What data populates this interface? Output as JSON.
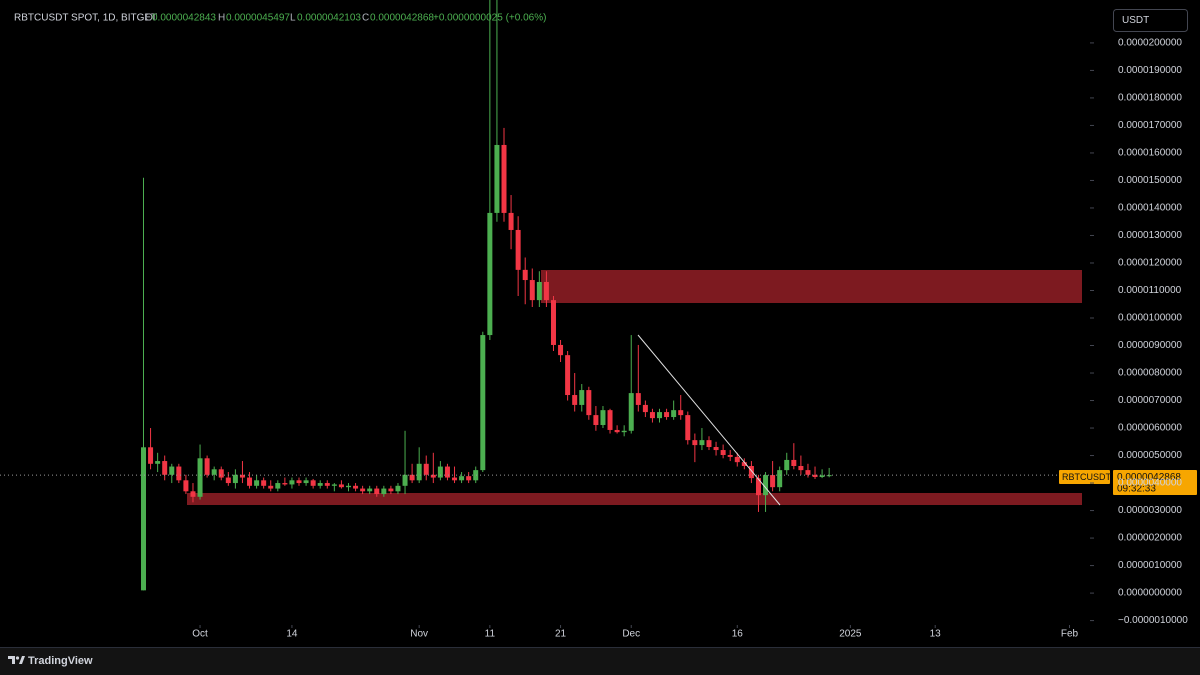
{
  "chart_data": {
    "type": "candlestick",
    "title": "RBTCUSDT SPOT, 1D, BITGET",
    "ohlc_letters": [
      "O",
      "H",
      "L",
      "C"
    ],
    "change": "+0.0000000025 (+0.06%)",
    "currency": "USDT",
    "symbol_tag": "RBTCUSDT",
    "countdown": "09:32:33",
    "brand": "TradingView",
    "up_color": "#4caf50",
    "down_color": "#f23645",
    "grid": false,
    "open": [
      1e-07,
      5.3e-06,
      4.7e-06,
      4.8e-06,
      4.3e-06,
      4.6e-06,
      4.1e-06,
      3.7e-06,
      3.5e-06,
      4.9e-06,
      4.3e-06,
      4.5e-06,
      4.2e-06,
      4e-06,
      4.3e-06,
      4.2e-06,
      3.9e-06,
      4.1e-06,
      3.9e-06,
      3.8e-06,
      4e-06,
      3.95e-06,
      4.1e-06,
      4e-06,
      4.1e-06,
      3.9e-06,
      4e-06,
      3.9e-06,
      3.95e-06,
      3.85e-06,
      3.9e-06,
      3.8e-06,
      3.7e-06,
      3.8e-06,
      3.6e-06,
      3.8e-06,
      3.7e-06,
      3.9e-06,
      4.3e-06,
      4.1e-06,
      4.7e-06,
      4.3e-06,
      4.2e-06,
      4.6e-06,
      4.2e-06,
      4.1e-06,
      4.25e-06,
      4.1e-06,
      4.47e-06,
      9.38e-06,
      1.382e-05,
      1.629e-05,
      1.382e-05,
      1.32e-05,
      1.175e-05,
      1.138e-05,
      1.065e-05,
      1.131e-05,
      1.065e-05,
      9.02e-06,
      8.65e-06,
      7.2e-06,
      6.84e-06,
      7.38e-06,
      6.47e-06,
      6.11e-06,
      6.65e-06,
      5.93e-06,
      5.85e-06,
      5.9e-06,
      7.27e-06,
      6.84e-06,
      6.58e-06,
      6.36e-06,
      6.58e-06,
      6.4e-06,
      6.65e-06,
      6.47e-06,
      5.56e-06,
      5.38e-06,
      5.56e-06,
      5.31e-06,
      5.2e-06,
      5.02e-06,
      4.95e-06,
      4.76e-06,
      4.62e-06,
      4.18e-06,
      3.56e-06,
      4.29e-06,
      3.85e-06,
      4.47e-06,
      4.84e-06,
      4.62e-06,
      4.47e-06,
      4.3e-06,
      4.22e-06,
      4.2843e-06
    ],
    "high": [
      1.51e-05,
      6e-06,
      5.1e-06,
      5e-06,
      4.7e-06,
      4.7e-06,
      4.3e-06,
      4e-06,
      5.4e-06,
      5e-06,
      4.6e-06,
      4.6e-06,
      4.4e-06,
      4.5e-06,
      4.8e-06,
      4.4e-06,
      4.3e-06,
      4.2e-06,
      4.1e-06,
      4.1e-06,
      4.2e-06,
      4.2e-06,
      4.2e-06,
      4.2e-06,
      4.15e-06,
      4.1e-06,
      4.1e-06,
      4e-06,
      4.1e-06,
      4e-06,
      4e-06,
      3.9e-06,
      3.9e-06,
      3.9e-06,
      3.9e-06,
      3.9e-06,
      4e-06,
      5.9e-06,
      4.7e-06,
      5.3e-06,
      5e-06,
      5.1e-06,
      4.8e-06,
      4.7e-06,
      4.6e-06,
      4.4e-06,
      4.4e-06,
      4.6e-06,
      9.5e-06,
      2.16e-05,
      2.16e-05,
      1.691e-05,
      1.447e-05,
      1.37e-05,
      1.22e-05,
      1.18e-05,
      1.17e-05,
      1.17e-05,
      1.08e-05,
      9.2e-06,
      8.8e-06,
      8e-06,
      7.6e-06,
      7.5e-06,
      6.8e-06,
      6.8e-06,
      6.7e-06,
      6.1e-06,
      6.1e-06,
      9.38e-06,
      9.02e-06,
      7e-06,
      6.7e-06,
      6.7e-06,
      6.7e-06,
      7e-06,
      7.2e-06,
      6.6e-06,
      5.8e-06,
      6e-06,
      5.7e-06,
      5.5e-06,
      5.4e-06,
      5.2e-06,
      5.1e-06,
      4.9e-06,
      4.8e-06,
      4.3e-06,
      4.4e-06,
      4.8e-06,
      4.6e-06,
      5.1e-06,
      5.45e-06,
      5e-06,
      4.7e-06,
      4.6e-06,
      4.5e-06,
      4.5497e-06
    ],
    "low": [
      1e-07,
      4.5e-06,
      4.4e-06,
      4.1e-06,
      4e-06,
      4e-06,
      3.6e-06,
      3.3e-06,
      3.4e-06,
      4.2e-06,
      4.1e-06,
      4.1e-06,
      3.9e-06,
      3.8e-06,
      4e-06,
      3.8e-06,
      3.8e-06,
      3.8e-06,
      3.7e-06,
      3.7e-06,
      3.9e-06,
      3.8e-06,
      3.9e-06,
      3.9e-06,
      3.8e-06,
      3.8e-06,
      3.8e-06,
      3.7e-06,
      3.8e-06,
      3.7e-06,
      3.7e-06,
      3.6e-06,
      3.6e-06,
      3.5e-06,
      3.5e-06,
      3.6e-06,
      3.6e-06,
      3.6e-06,
      4e-06,
      4e-06,
      4.1e-06,
      4e-06,
      4.1e-06,
      4.1e-06,
      4e-06,
      4e-06,
      4e-06,
      4e-06,
      4.4e-06,
      9.2e-06,
      1.35e-05,
      1.35e-05,
      1.25e-05,
      1.08e-05,
      1.05e-05,
      1.04e-05,
      1.04e-05,
      1.04e-05,
      8.8e-06,
      8.4e-06,
      7e-06,
      6.6e-06,
      6.6e-06,
      6.3e-06,
      5.9e-06,
      6e-06,
      5.8e-06,
      5.8e-06,
      5.7e-06,
      5.8e-06,
      6.6e-06,
      6.4e-06,
      6.2e-06,
      6.2e-06,
      6.3e-06,
      6.3e-06,
      6.3e-06,
      5.4e-06,
      4.76e-06,
      5.2e-06,
      5.2e-06,
      5e-06,
      4.9e-06,
      4.8e-06,
      4.6e-06,
      4.5e-06,
      4e-06,
      2.95e-06,
      2.95e-06,
      3.7e-06,
      3.7e-06,
      4.3e-06,
      4.5e-06,
      4.3e-06,
      4.2e-06,
      4.15e-06,
      4.18e-06,
      4.2103e-06
    ],
    "close": [
      5.3e-06,
      4.7e-06,
      4.8e-06,
      4.3e-06,
      4.6e-06,
      4.1e-06,
      3.7e-06,
      3.5e-06,
      4.9e-06,
      4.3e-06,
      4.5e-06,
      4.2e-06,
      4e-06,
      4.3e-06,
      4.2e-06,
      3.9e-06,
      4.1e-06,
      3.9e-06,
      3.8e-06,
      4e-06,
      3.95e-06,
      4.1e-06,
      4e-06,
      4.1e-06,
      3.9e-06,
      4e-06,
      3.9e-06,
      3.95e-06,
      3.85e-06,
      3.9e-06,
      3.8e-06,
      3.7e-06,
      3.8e-06,
      3.6e-06,
      3.8e-06,
      3.7e-06,
      3.9e-06,
      4.3e-06,
      4.1e-06,
      4.7e-06,
      4.3e-06,
      4.2e-06,
      4.6e-06,
      4.2e-06,
      4.1e-06,
      4.25e-06,
      4.1e-06,
      4.47e-06,
      9.38e-06,
      1.382e-05,
      1.629e-05,
      1.382e-05,
      1.32e-05,
      1.175e-05,
      1.138e-05,
      1.065e-05,
      1.131e-05,
      1.065e-05,
      9.02e-06,
      8.65e-06,
      7.2e-06,
      6.84e-06,
      7.38e-06,
      6.47e-06,
      6.11e-06,
      6.65e-06,
      5.93e-06,
      5.85e-06,
      5.9e-06,
      7.27e-06,
      6.84e-06,
      6.58e-06,
      6.36e-06,
      6.58e-06,
      6.4e-06,
      6.65e-06,
      6.47e-06,
      5.56e-06,
      5.38e-06,
      5.56e-06,
      5.31e-06,
      5.2e-06,
      5.02e-06,
      4.95e-06,
      4.76e-06,
      4.62e-06,
      4.18e-06,
      3.56e-06,
      4.29e-06,
      3.85e-06,
      4.47e-06,
      4.84e-06,
      4.62e-06,
      4.47e-06,
      4.3e-06,
      4.22e-06,
      4.28e-06,
      4.2868e-06
    ],
    "xlim": [
      -20.3,
      133.9
    ],
    "xticks": [
      {
        "value": 8,
        "label": "Oct"
      },
      {
        "value": 21,
        "label": "14"
      },
      {
        "value": 39,
        "label": "Nov"
      },
      {
        "value": 49,
        "label": "11"
      },
      {
        "value": 59,
        "label": "21"
      },
      {
        "value": 69,
        "label": "Dec"
      },
      {
        "value": 84,
        "label": "16"
      },
      {
        "value": 100,
        "label": "2025"
      },
      {
        "value": 112,
        "label": "13"
      },
      {
        "value": 131,
        "label": "Feb"
      }
    ],
    "ylim": [
      -1.16e-06,
      2.156e-05
    ],
    "yticks": [
      {
        "value": 2e-05,
        "label": "0.0000200000"
      },
      {
        "value": 1.9e-05,
        "label": "0.0000190000"
      },
      {
        "value": 1.8e-05,
        "label": "0.0000180000"
      },
      {
        "value": 1.7e-05,
        "label": "0.0000170000"
      },
      {
        "value": 1.6e-05,
        "label": "0.0000160000"
      },
      {
        "value": 1.5e-05,
        "label": "0.0000150000"
      },
      {
        "value": 1.4e-05,
        "label": "0.0000140000"
      },
      {
        "value": 1.3e-05,
        "label": "0.0000130000"
      },
      {
        "value": 1.2e-05,
        "label": "0.0000120000"
      },
      {
        "value": 1.1e-05,
        "label": "0.0000110000"
      },
      {
        "value": 1e-05,
        "label": "0.0000100000"
      },
      {
        "value": 9e-06,
        "label": "0.0000090000"
      },
      {
        "value": 8e-06,
        "label": "0.0000080000"
      },
      {
        "value": 7e-06,
        "label": "0.0000070000"
      },
      {
        "value": 6e-06,
        "label": "0.0000060000"
      },
      {
        "value": 5e-06,
        "label": "0.0000050000"
      },
      {
        "value": 4e-06,
        "label": "0.0000040000"
      },
      {
        "value": 3e-06,
        "label": "0.0000030000"
      },
      {
        "value": 2e-06,
        "label": "0.0000020000"
      },
      {
        "value": 1e-06,
        "label": "0.0000010000"
      },
      {
        "value": 0,
        "label": "0.0000000000"
      },
      {
        "value": -1e-06,
        "label": "−0.0000010000"
      }
    ]
  }
}
